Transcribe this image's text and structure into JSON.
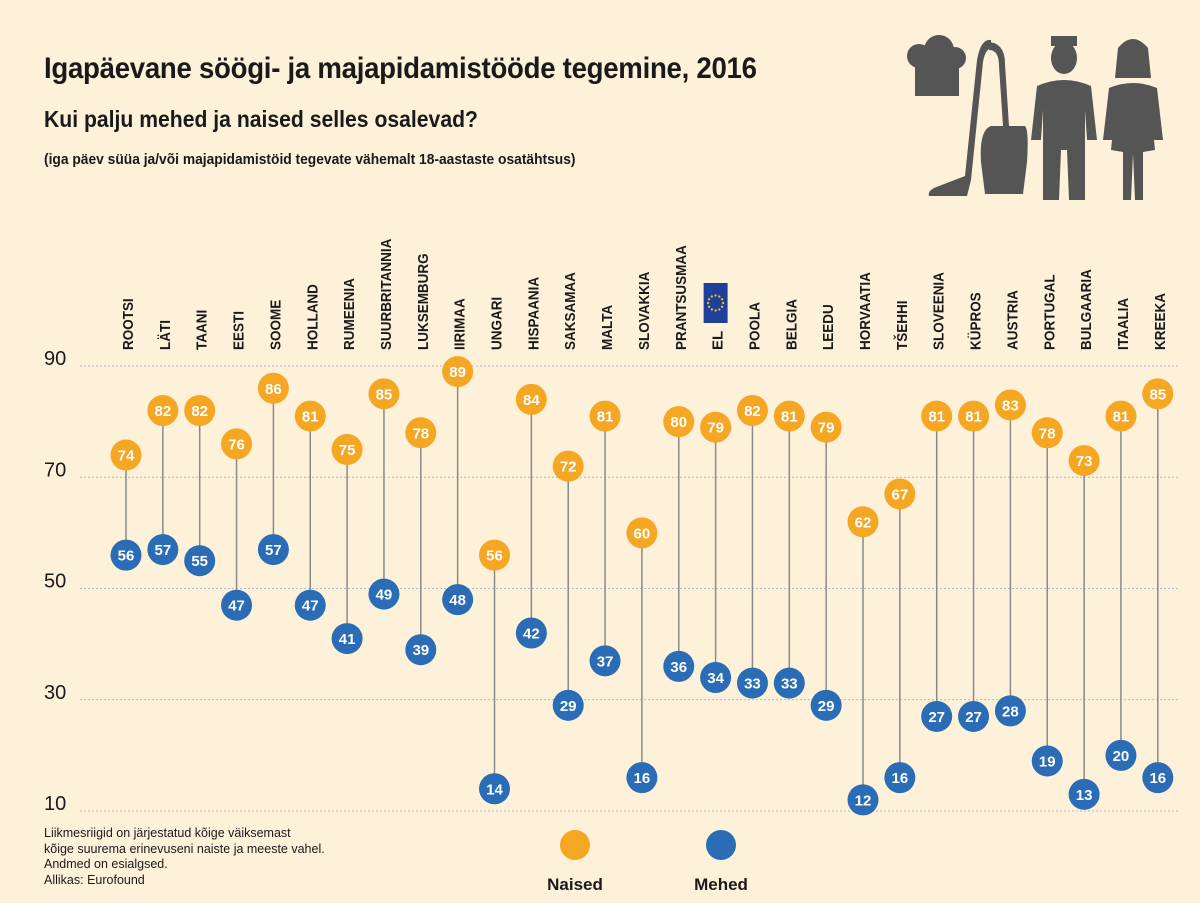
{
  "title": "Igapäevane söögi- ja majapidamistööde tegemine, 2016",
  "subtitle": "Kui palju mehed ja naised selles osalevad?",
  "note": "(iga päev süüa ja/või majapidamistöid tegevate vähemalt 18-aastaste osatähtsus)",
  "footnote": [
    "Liikmesriigid on järjestatud kõige väiksemast",
    "kõige suurema erinevuseni naiste ja meeste vahel.",
    "Andmed on esialgsed.",
    "Allikas: Eurofound"
  ],
  "colors": {
    "women": "#f5a623",
    "men": "#2a6cb5",
    "background": "#fdf1d9",
    "stem": "#8a8a8a",
    "grid": "#9aa7c7",
    "icons": "#555555",
    "eu_flag": "#1f3f99"
  },
  "icons": [
    "chef-hat-icon",
    "vacuum-cleaner-icon",
    "man-icon",
    "woman-icon",
    "eu-flag-icon"
  ],
  "chart_data": {
    "type": "dumbbell",
    "categories": [
      "ROOTSI",
      "LÄTI",
      "TAANI",
      "EESTI",
      "SOOME",
      "HOLLAND",
      "RUMEENIA",
      "SUURBRITANNIA",
      "LUKSEMBURG",
      "IIRIMAA",
      "UNGARI",
      "HISPAANIA",
      "SAKSAMAA",
      "MALTA",
      "SLOVAKKIA",
      "PRANTSUSMAA",
      "EL",
      "POOLA",
      "BELGIA",
      "LEEDU",
      "HORVAATIA",
      "TŠEHHI",
      "SLOVEENIA",
      "KÜPROS",
      "AUSTRIA",
      "PORTUGAL",
      "BULGAARIA",
      "ITAALIA",
      "KREEKA"
    ],
    "eu_category": "EL",
    "series": [
      {
        "name": "Naised",
        "values": [
          74,
          82,
          82,
          76,
          86,
          81,
          75,
          85,
          78,
          89,
          56,
          84,
          72,
          81,
          60,
          80,
          79,
          82,
          81,
          79,
          62,
          67,
          81,
          81,
          83,
          78,
          73,
          81,
          85
        ]
      },
      {
        "name": "Mehed",
        "values": [
          56,
          57,
          55,
          47,
          57,
          47,
          41,
          49,
          39,
          48,
          14,
          42,
          29,
          37,
          16,
          36,
          34,
          33,
          33,
          29,
          12,
          16,
          27,
          27,
          28,
          19,
          13,
          20,
          16
        ]
      }
    ],
    "yticks": [
      90,
      70,
      50,
      30,
      10
    ],
    "ylim": [
      10,
      90
    ],
    "grid": true,
    "legend": "bottom-center"
  }
}
